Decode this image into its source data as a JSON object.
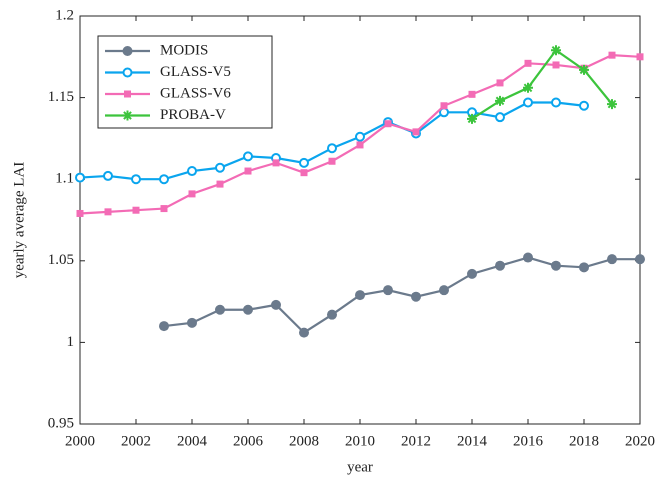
{
  "chart_data": {
    "type": "line",
    "xlabel": "year",
    "ylabel": "yearly average LAI",
    "xlim": [
      2000,
      2020
    ],
    "xticks": [
      2000,
      2002,
      2004,
      2006,
      2008,
      2010,
      2012,
      2014,
      2016,
      2018,
      2020
    ],
    "ylim": [
      0.95,
      1.2
    ],
    "yticks": [
      0.95,
      1,
      1.05,
      1.1,
      1.15,
      1.2
    ],
    "legend": "upper-left",
    "series": [
      {
        "name": "MODIS",
        "color": "#6b7a8c",
        "marker": "filled-circle",
        "x": [
          2003,
          2004,
          2005,
          2006,
          2007,
          2008,
          2009,
          2010,
          2011,
          2012,
          2013,
          2014,
          2015,
          2016,
          2017,
          2018,
          2019,
          2020
        ],
        "values": [
          1.01,
          1.012,
          1.02,
          1.02,
          1.023,
          1.006,
          1.017,
          1.029,
          1.032,
          1.028,
          1.032,
          1.042,
          1.047,
          1.052,
          1.047,
          1.046,
          1.051,
          1.051
        ]
      },
      {
        "name": "GLASS-V5",
        "color": "#0aa5ee",
        "marker": "open-circle",
        "x": [
          2000,
          2001,
          2002,
          2003,
          2004,
          2005,
          2006,
          2007,
          2008,
          2009,
          2010,
          2011,
          2012,
          2013,
          2014,
          2015,
          2016,
          2017,
          2018
        ],
        "values": [
          1.101,
          1.102,
          1.1,
          1.1,
          1.105,
          1.107,
          1.114,
          1.113,
          1.11,
          1.119,
          1.126,
          1.135,
          1.128,
          1.141,
          1.141,
          1.138,
          1.147,
          1.147,
          1.145
        ]
      },
      {
        "name": "GLASS-V6",
        "color": "#f36bb5",
        "marker": "square",
        "x": [
          2000,
          2001,
          2002,
          2003,
          2004,
          2005,
          2006,
          2007,
          2008,
          2009,
          2010,
          2011,
          2012,
          2013,
          2014,
          2015,
          2016,
          2017,
          2018,
          2019,
          2020
        ],
        "values": [
          1.079,
          1.08,
          1.081,
          1.082,
          1.091,
          1.097,
          1.105,
          1.11,
          1.104,
          1.111,
          1.121,
          1.134,
          1.129,
          1.145,
          1.152,
          1.159,
          1.171,
          1.17,
          1.168,
          1.176,
          1.175
        ]
      },
      {
        "name": "PROBA-V",
        "color": "#3cc43c",
        "marker": "asterisk",
        "x": [
          2014,
          2015,
          2016,
          2017,
          2018,
          2019
        ],
        "values": [
          1.137,
          1.148,
          1.156,
          1.179,
          1.167,
          1.146
        ]
      }
    ]
  }
}
